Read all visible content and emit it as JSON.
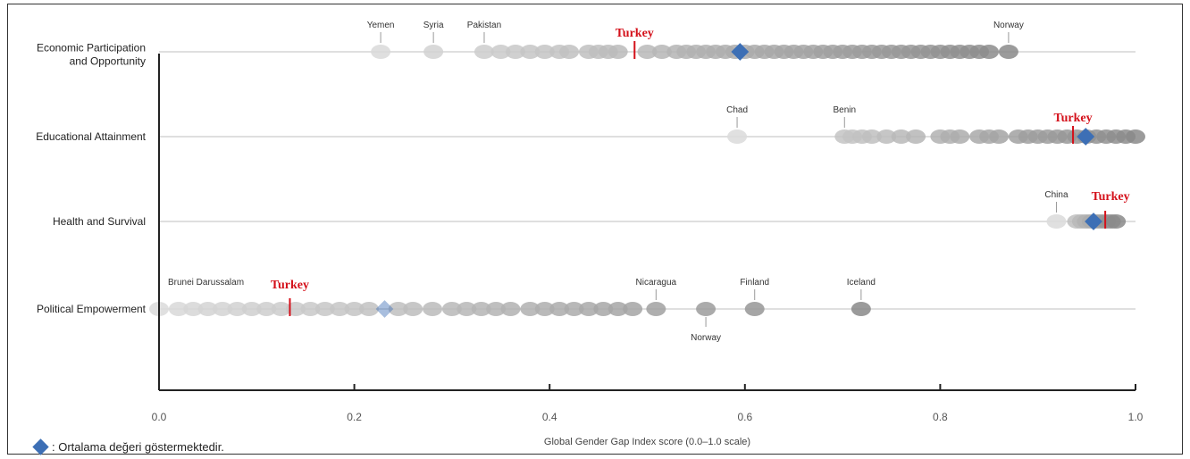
{
  "chart_data": {
    "type": "scatter",
    "title": "",
    "xlabel": "Global Gender Gap Index score (0.0–1.0 scale)",
    "ylabel": "",
    "xlim": [
      0.0,
      1.0
    ],
    "xticks": [
      "0.0",
      "0.2",
      "0.4",
      "0.6",
      "0.8",
      "1.0"
    ],
    "xtick_values": [
      0.0,
      0.2,
      0.4,
      0.6,
      0.8,
      1.0
    ],
    "grid": false,
    "colors": {
      "dots_light": "#d9d9d9",
      "dots_dark": "#8c8c8c",
      "average": "#3d6fb5",
      "highlight": "#d4101a",
      "line": "#cccccc"
    },
    "highlight": {
      "label": "Turkey"
    },
    "legend": {
      "label": ": Ortalama değeri göstermektedir.",
      "placement": "bottom-left"
    },
    "categories": [
      {
        "name": "Economic Participation and Opportunity",
        "name_lines": [
          "Economic Participation",
          "and Opportunity"
        ],
        "min": 0.22,
        "max": 0.87,
        "average": 0.595,
        "highlight_value": 0.487,
        "labeled": [
          {
            "name": "Yemen",
            "value": 0.227
          },
          {
            "name": "Syria",
            "value": 0.281
          },
          {
            "name": "Pakistan",
            "value": 0.333
          },
          {
            "name": "Norway",
            "value": 0.87
          }
        ],
        "dots": [
          0.227,
          0.281,
          0.333,
          0.35,
          0.365,
          0.38,
          0.395,
          0.41,
          0.42,
          0.44,
          0.45,
          0.46,
          0.47,
          0.5,
          0.515,
          0.53,
          0.54,
          0.55,
          0.56,
          0.57,
          0.58,
          0.59,
          0.6,
          0.61,
          0.62,
          0.63,
          0.64,
          0.65,
          0.66,
          0.67,
          0.68,
          0.69,
          0.7,
          0.71,
          0.72,
          0.73,
          0.74,
          0.75,
          0.76,
          0.77,
          0.78,
          0.79,
          0.8,
          0.81,
          0.82,
          0.83,
          0.84,
          0.85,
          0.87
        ]
      },
      {
        "name": "Educational Attainment",
        "name_lines": [
          "Educational Attainment"
        ],
        "min": 0.59,
        "max": 1.0,
        "average": 0.949,
        "highlight_value": 0.936,
        "labeled": [
          {
            "name": "Chad",
            "value": 0.592
          },
          {
            "name": "Benin",
            "value": 0.702
          }
        ],
        "dots": [
          0.592,
          0.702,
          0.71,
          0.72,
          0.73,
          0.745,
          0.76,
          0.775,
          0.8,
          0.81,
          0.82,
          0.84,
          0.85,
          0.86,
          0.88,
          0.89,
          0.9,
          0.91,
          0.92,
          0.93,
          0.94,
          0.95,
          0.96,
          0.97,
          0.98,
          0.99,
          1.0
        ]
      },
      {
        "name": "Health and Survival",
        "name_lines": [
          "Health and Survival"
        ],
        "min": 0.92,
        "max": 0.98,
        "average": 0.957,
        "highlight_value": 0.969,
        "labeled": [
          {
            "name": "China",
            "value": 0.919
          }
        ],
        "dots": [
          0.919,
          0.94,
          0.945,
          0.95,
          0.955,
          0.96,
          0.965,
          0.97,
          0.975,
          0.98
        ]
      },
      {
        "name": "Political Empowerment",
        "name_lines": [
          "Political Empowerment"
        ],
        "min": 0.0,
        "max": 0.72,
        "average": 0.231,
        "highlight_value": 0.134,
        "labeled": [
          {
            "name": "Brunei Darussalam",
            "value": 0.0
          },
          {
            "name": "Nicaragua",
            "value": 0.509
          },
          {
            "name": "Finland",
            "value": 0.61
          },
          {
            "name": "Iceland",
            "value": 0.719
          }
        ],
        "labeled_below": [
          {
            "name": "Norway",
            "value": 0.56
          }
        ],
        "dots": [
          0.0,
          0.02,
          0.035,
          0.05,
          0.065,
          0.08,
          0.095,
          0.11,
          0.125,
          0.14,
          0.155,
          0.17,
          0.185,
          0.2,
          0.215,
          0.245,
          0.26,
          0.28,
          0.3,
          0.315,
          0.33,
          0.345,
          0.36,
          0.38,
          0.395,
          0.41,
          0.425,
          0.44,
          0.455,
          0.47,
          0.485,
          0.509,
          0.56,
          0.61,
          0.719
        ]
      }
    ]
  }
}
